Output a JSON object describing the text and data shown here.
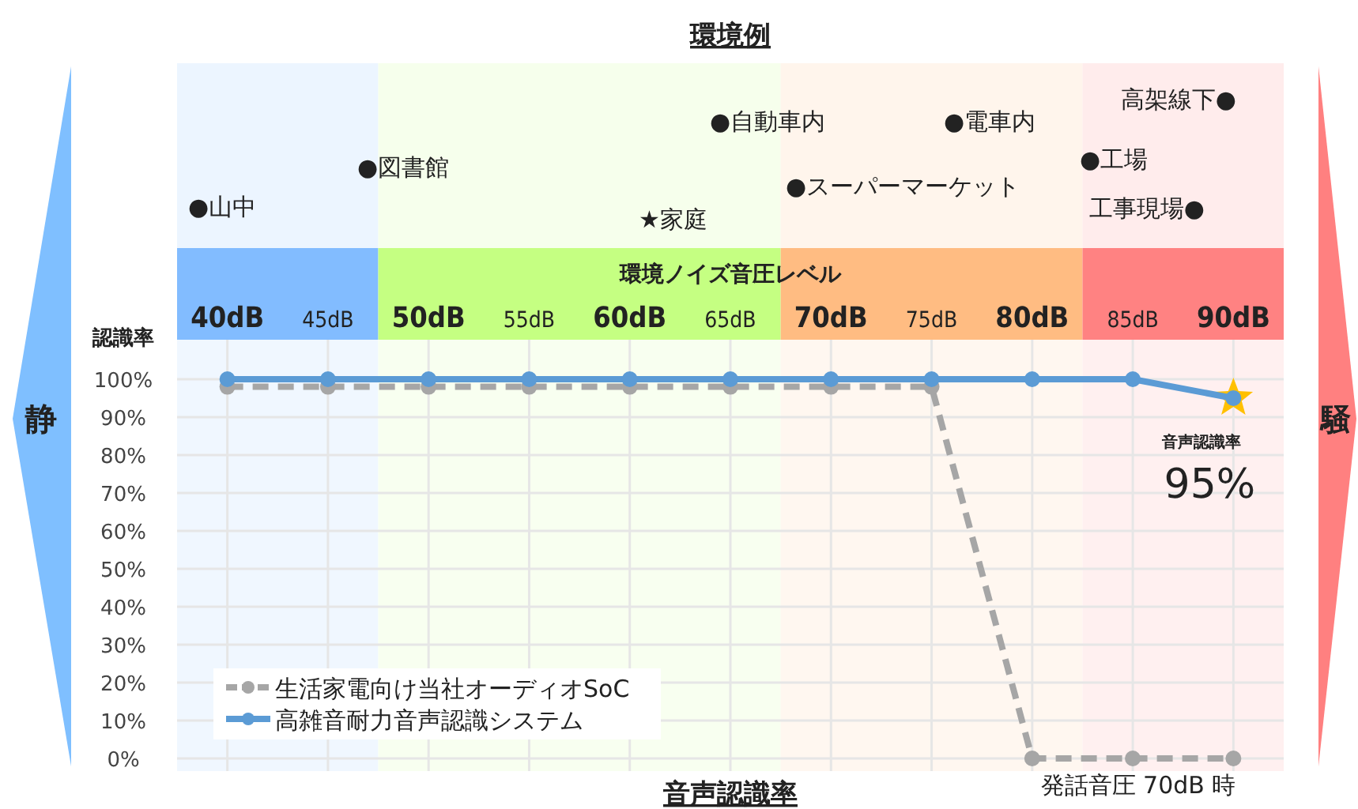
{
  "chart_data": {
    "type": "line",
    "title": "環境例",
    "xlabel": "環境ノイズ音圧レベル",
    "ylabel": "認識率",
    "x": [
      40,
      45,
      50,
      55,
      60,
      65,
      70,
      75,
      80,
      85,
      90
    ],
    "series": [
      {
        "name": "生活家電向け当社オーディオSoC",
        "color": "#a6a6a6",
        "line_style": "dashed",
        "marker": "circle",
        "values": [
          98,
          98,
          98,
          98,
          98,
          98,
          98,
          98,
          0,
          0,
          0
        ]
      },
      {
        "name": "高雑音耐力音声認識システム",
        "color": "#5b9bd5",
        "line_style": "solid",
        "marker": "circle",
        "values": [
          100,
          100,
          100,
          100,
          100,
          100,
          100,
          100,
          100,
          100,
          95
        ]
      }
    ],
    "xlim": [
      37.5,
      92.5
    ],
    "ylim": [
      0,
      100
    ],
    "xticks": [
      {
        "value": 40,
        "label": "40dB"
      },
      {
        "value": 45,
        "label": "45dB"
      },
      {
        "value": 50,
        "label": "50dB"
      },
      {
        "value": 55,
        "label": "55dB"
      },
      {
        "value": 60,
        "label": "60dB"
      },
      {
        "value": 65,
        "label": "65dB"
      },
      {
        "value": 70,
        "label": "70dB"
      },
      {
        "value": 75,
        "label": "75dB"
      },
      {
        "value": 80,
        "label": "80dB"
      },
      {
        "value": 85,
        "label": "85dB"
      },
      {
        "value": 90,
        "label": "90dB"
      }
    ],
    "yticks": [
      {
        "value": 0,
        "label": "0%"
      },
      {
        "value": 10,
        "label": "10%"
      },
      {
        "value": 20,
        "label": "20%"
      },
      {
        "value": 30,
        "label": "30%"
      },
      {
        "value": 40,
        "label": "40%"
      },
      {
        "value": 50,
        "label": "50%"
      },
      {
        "value": 60,
        "label": "60%"
      },
      {
        "value": 70,
        "label": "70%"
      },
      {
        "value": 80,
        "label": "80%"
      },
      {
        "value": 90,
        "label": "90%"
      },
      {
        "value": 100,
        "label": "100%"
      }
    ],
    "bands": [
      {
        "axis": "x",
        "from": 37.5,
        "to": 47.5,
        "color": "#f0f7ff"
      },
      {
        "axis": "x",
        "from": 47.5,
        "to": 67.5,
        "color": "#f8fff0"
      },
      {
        "axis": "x",
        "from": 67.5,
        "to": 82.5,
        "color": "#fff7f0"
      },
      {
        "axis": "x",
        "from": 82.5,
        "to": 92.5,
        "color": "#fff0f0"
      }
    ],
    "annotations": [
      "●山中",
      "●図書館",
      "★家庭",
      "●自動車内",
      "●スーパーマーケット",
      "●電車内",
      "●工場",
      "高架線下●",
      "工事現場●",
      {
        "text": "音声認識率",
        "x": 90,
        "y": 95
      },
      {
        "text": "95%",
        "x": 90,
        "y": 95
      },
      "音声認識率",
      "発話音圧 70dB 時",
      "静",
      "騒"
    ],
    "grid": true,
    "legend": "bottom left"
  }
}
